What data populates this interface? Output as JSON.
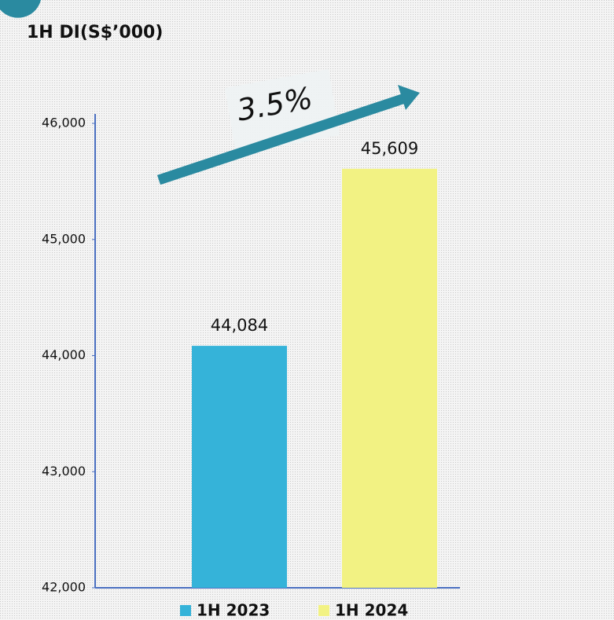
{
  "chart_data": {
    "type": "bar",
    "title": "1H DI(S$’000)",
    "annotation": "3.5%",
    "categories": [
      "1H 2023",
      "1H 2024"
    ],
    "values": [
      44084,
      45609
    ],
    "value_labels": [
      "44,084",
      "45,609"
    ],
    "colors": [
      "#35b3d9",
      "#f2f283"
    ],
    "ylim": [
      42000,
      46000
    ],
    "yticks": [
      {
        "value": 42000,
        "label": "42,000"
      },
      {
        "value": 43000,
        "label": "43,000"
      },
      {
        "value": 44000,
        "label": "44,000"
      },
      {
        "value": 45000,
        "label": "45,000"
      },
      {
        "value": 46000,
        "label": "46,000"
      }
    ],
    "grid": false,
    "legend": "bottom"
  }
}
